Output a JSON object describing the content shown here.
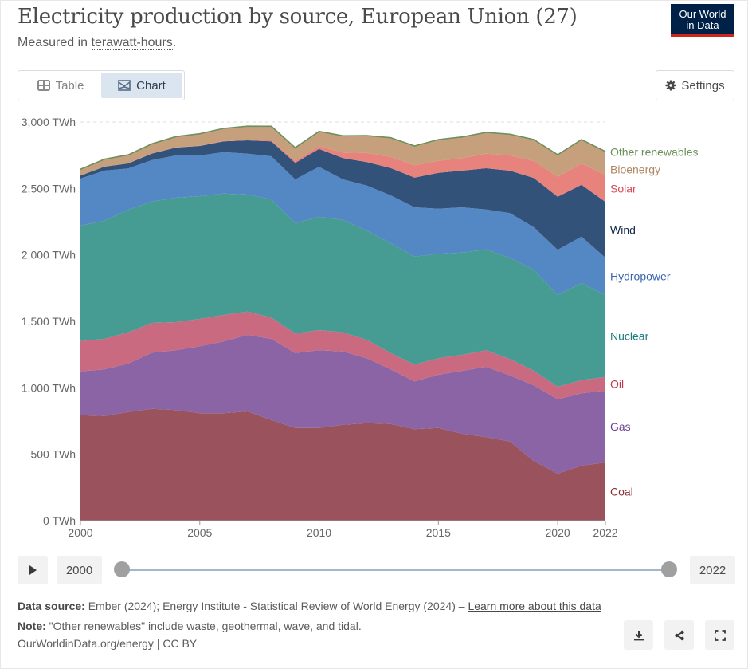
{
  "header": {
    "title": "Electricity production by source, European Union (27)",
    "subtitle_prefix": "Measured in ",
    "subtitle_link": "terawatt-hours",
    "subtitle_suffix": ".",
    "logo_line1": "Our World",
    "logo_line2": "in Data"
  },
  "toolbar": {
    "tabs": [
      {
        "label": "Table",
        "icon": "table-icon",
        "active": false
      },
      {
        "label": "Chart",
        "icon": "chart-icon",
        "active": true
      }
    ],
    "settings_label": "Settings"
  },
  "timeline": {
    "start": "2000",
    "end": "2022",
    "play_icon": "play-icon"
  },
  "footer": {
    "source_label": "Data source:",
    "source_text": " Ember (2024); Energy Institute - Statistical Review of World Energy (2024) – ",
    "learn_more": "Learn more about this data",
    "note_label": "Note:",
    "note_text": " \"Other renewables\" include waste, geothermal, wave, and tidal.",
    "credit": "OurWorldinData.org/energy | CC BY",
    "icons": [
      "download-icon",
      "share-icon",
      "fullscreen-icon"
    ]
  },
  "colors": {
    "Coal": "#9a525c",
    "Gas": "#8a64a4",
    "Oil": "#c96a80",
    "Nuclear": "#469c93",
    "Hydropower": "#5488c4",
    "Wind": "#33527a",
    "Solar": "#e8827c",
    "Bioenergy": "#c6a07c",
    "Other renewables": "#6e8f5e"
  },
  "label_colors": {
    "Coal": "#883039",
    "Gas": "#6d3e91",
    "Oil": "#c0384e",
    "Nuclear": "#1c7c7c",
    "Hydropower": "#3c65b0",
    "Wind": "#13294b",
    "Solar": "#d94a58",
    "Bioenergy": "#b18561",
    "Other renewables": "#6b8f5a"
  },
  "chart_data": {
    "type": "area",
    "stacked": true,
    "title": "Electricity production by source, European Union (27)",
    "subtitle": "Measured in terawatt-hours.",
    "xlabel": "",
    "ylabel": "",
    "unit": "TWh",
    "x": [
      2000,
      2001,
      2002,
      2003,
      2004,
      2005,
      2006,
      2007,
      2008,
      2009,
      2010,
      2011,
      2012,
      2013,
      2014,
      2015,
      2016,
      2017,
      2018,
      2019,
      2020,
      2021,
      2022
    ],
    "x_ticks": [
      "2000",
      "2005",
      "2010",
      "2015",
      "2020",
      "2022"
    ],
    "y_ticks": [
      "0 TWh",
      "500 TWh",
      "1,000 TWh",
      "1,500 TWh",
      "2,000 TWh",
      "2,500 TWh",
      "3,000 TWh"
    ],
    "ylim": [
      0,
      3000
    ],
    "grid": true,
    "legend": "right (inline labels)",
    "series": [
      {
        "name": "Coal",
        "values": [
          794,
          788,
          818,
          842,
          832,
          808,
          808,
          822,
          758,
          698,
          698,
          722,
          734,
          728,
          688,
          698,
          654,
          628,
          596,
          448,
          354,
          414,
          438
        ]
      },
      {
        "name": "Gas",
        "values": [
          330,
          350,
          364,
          422,
          450,
          504,
          540,
          576,
          610,
          564,
          584,
          552,
          488,
          410,
          360,
          400,
          474,
          530,
          498,
          570,
          560,
          544,
          540
        ]
      },
      {
        "name": "Oil",
        "values": [
          228,
          230,
          236,
          224,
          212,
          206,
          200,
          176,
          160,
          146,
          152,
          144,
          138,
          124,
          126,
          124,
          120,
          124,
          122,
          110,
          94,
          100,
          104
        ]
      },
      {
        "name": "Nuclear",
        "values": [
          868,
          890,
          922,
          913,
          936,
          924,
          914,
          880,
          890,
          830,
          854,
          844,
          822,
          826,
          814,
          786,
          770,
          760,
          762,
          760,
          690,
          730,
          616
        ]
      },
      {
        "name": "Hydropower",
        "values": [
          354,
          376,
          310,
          312,
          318,
          306,
          311,
          308,
          324,
          330,
          374,
          306,
          340,
          360,
          370,
          340,
          340,
          300,
          336,
          320,
          340,
          350,
          280
        ]
      },
      {
        "name": "Wind",
        "values": [
          22,
          30,
          38,
          50,
          60,
          72,
          82,
          100,
          112,
          124,
          136,
          160,
          176,
          206,
          224,
          270,
          276,
          310,
          320,
          370,
          400,
          390,
          420
        ]
      },
      {
        "name": "Solar",
        "values": [
          0,
          0,
          1,
          1,
          2,
          2,
          3,
          5,
          8,
          15,
          22,
          42,
          70,
          84,
          92,
          90,
          94,
          110,
          114,
          130,
          150,
          160,
          204
        ]
      },
      {
        "name": "Bioenergy",
        "values": [
          44,
          52,
          60,
          68,
          76,
          86,
          90,
          98,
          102,
          96,
          106,
          122,
          126,
          140,
          142,
          156,
          156,
          156,
          156,
          156,
          162,
          176,
          172
        ]
      },
      {
        "name": "Other renewables",
        "values": [
          4,
          4,
          4,
          4,
          4,
          4,
          4,
          4,
          4,
          4,
          4,
          4,
          4,
          4,
          4,
          4,
          4,
          4,
          4,
          4,
          4,
          4,
          4
        ]
      }
    ]
  }
}
